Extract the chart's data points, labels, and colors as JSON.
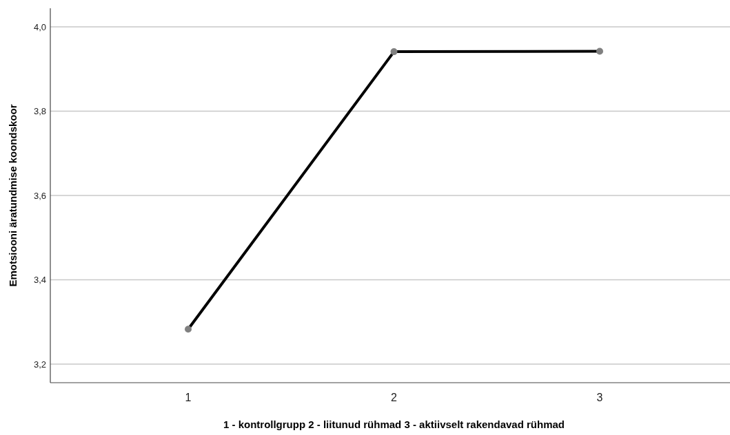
{
  "chart_data": {
    "type": "line",
    "xlabel": "1 - kontrollgrupp  2 - liitunud rühmad  3 - aktiivselt rakendavad rühmad",
    "ylabel": "Emotsiooni äratundmise koondskoor",
    "categories": [
      "1",
      "2",
      "3"
    ],
    "series": [
      {
        "color": "#000000",
        "values": [
          3.283,
          3.941,
          3.942
        ]
      }
    ],
    "ylim": [
      3.156,
      4.044
    ],
    "yticks": [
      {
        "value": 3.2,
        "label": "3,2"
      },
      {
        "value": 3.4,
        "label": "3,4"
      },
      {
        "value": 3.6,
        "label": "3,6"
      },
      {
        "value": 3.8,
        "label": "3,8"
      },
      {
        "value": 4.0,
        "label": "4,0"
      }
    ],
    "grid": "y",
    "marker": "circle",
    "line_style": "solid"
  }
}
